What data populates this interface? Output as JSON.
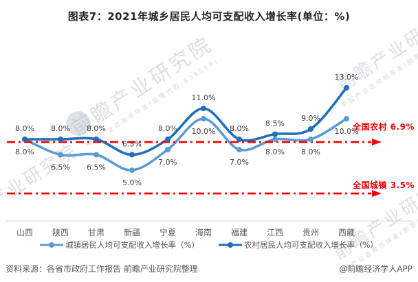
{
  "title": "图表7：2021年城乡居民人均可支配收入增长率(单位：%)",
  "chart_data": {
    "type": "line",
    "smooth": true,
    "grid": false,
    "legend_position": "bottom",
    "ylim": [
      3,
      14
    ],
    "categories": [
      "山西",
      "陕西",
      "甘肃",
      "新疆",
      "宁夏",
      "海南",
      "福建",
      "江西",
      "贵州",
      "西藏"
    ],
    "series": [
      {
        "name": "城镇居民人均可支配收入增长率（%）",
        "values": [
          8.0,
          6.5,
          6.5,
          5.0,
          7.0,
          10.0,
          7.0,
          8.0,
          8.0,
          10.0
        ],
        "color": "#5B9BD5",
        "label_position": "below"
      },
      {
        "name": "农村居民人均可支配收入增长率（%）",
        "values": [
          8.0,
          8.0,
          8.0,
          6.5,
          8.0,
          11.0,
          8.0,
          8.5,
          9.0,
          13.0
        ],
        "color": "#1F6FBC",
        "label_position": "above"
      }
    ],
    "data_label_format": "0.0%",
    "reference_lines": [
      {
        "name": "全国农村",
        "value": 6.9,
        "label": "全国农村 6.9%",
        "color": "#F80000",
        "style": "dash-dot-arrow"
      },
      {
        "name": "全国城镇",
        "value": 3.5,
        "label": "全国城镇 3.5%",
        "color": "#F80000",
        "style": "dash-dot-arrow"
      }
    ]
  },
  "watermark": {
    "text": "前瞻产业研究院",
    "subtext": "中国产业咨询领导者(股票代码:839599)"
  },
  "footer": {
    "source": "资料来源：各省市政府工作报告 前瞻产业研究院整理",
    "credit": "@前瞻经济学人APP"
  }
}
